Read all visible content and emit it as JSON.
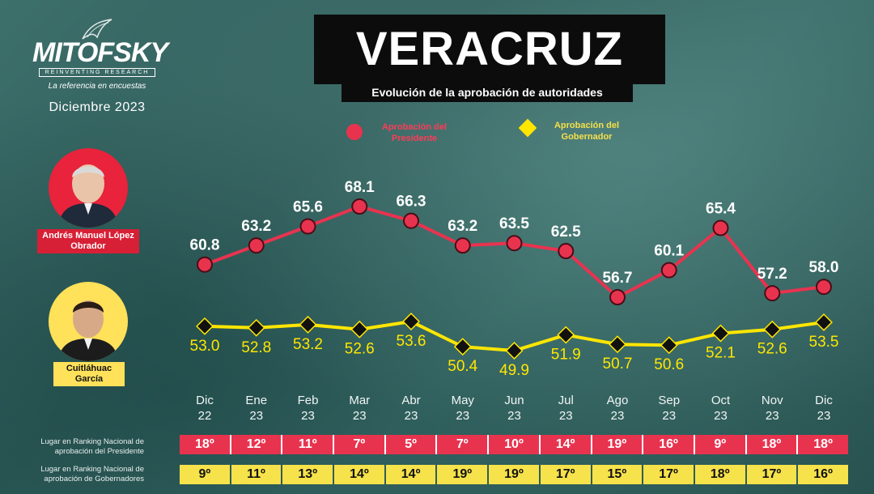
{
  "brand": {
    "name": "MITOFSKY",
    "tagline": "REINVENTING RESEARCH",
    "slogan": "La referencia en encuestas",
    "date": "Diciembre 2023"
  },
  "title": "VERACRUZ",
  "subtitle": "Evolución de la aprobación de autoridades",
  "legend": {
    "president": "Aprobación del Presidente",
    "governor": "Aprobación del Gobernador"
  },
  "people": {
    "president": "Andrés Manuel López Obrador",
    "governor": "Cuitláhuac García"
  },
  "colors": {
    "president": "#e8334f",
    "governor": "#ffe600",
    "marker": "#111111"
  },
  "chart_data": {
    "type": "line",
    "title": "VERACRUZ",
    "subtitle": "Evolución de la aprobación de autoridades",
    "categories": [
      {
        "month": "Dic",
        "year": "22"
      },
      {
        "month": "Ene",
        "year": "23"
      },
      {
        "month": "Feb",
        "year": "23"
      },
      {
        "month": "Mar",
        "year": "23"
      },
      {
        "month": "Abr",
        "year": "23"
      },
      {
        "month": "May",
        "year": "23"
      },
      {
        "month": "Jun",
        "year": "23"
      },
      {
        "month": "Jul",
        "year": "23"
      },
      {
        "month": "Ago",
        "year": "23"
      },
      {
        "month": "Sep",
        "year": "23"
      },
      {
        "month": "Oct",
        "year": "23"
      },
      {
        "month": "Nov",
        "year": "23"
      },
      {
        "month": "Dic",
        "year": "23"
      }
    ],
    "series": [
      {
        "name": "Aprobación del Presidente",
        "values": [
          60.8,
          63.2,
          65.6,
          68.1,
          66.3,
          63.2,
          63.5,
          62.5,
          56.7,
          60.1,
          65.4,
          57.2,
          58.0
        ]
      },
      {
        "name": "Aprobación del Gobernador",
        "values": [
          53.0,
          52.8,
          53.2,
          52.6,
          53.6,
          50.4,
          49.9,
          51.9,
          50.7,
          50.6,
          52.1,
          52.6,
          53.5
        ]
      }
    ],
    "legend_placement": "top"
  },
  "rankings": {
    "president_label": "Lugar en Ranking Nacional de aprobación del Presidente",
    "governor_label": "Lugar en Ranking Nacional de aprobación de Gobernadores",
    "president": [
      "18º",
      "12º",
      "11º",
      "7º",
      "5º",
      "7º",
      "10º",
      "14º",
      "19º",
      "16º",
      "9º",
      "18º",
      "18º"
    ],
    "governor": [
      "9º",
      "11º",
      "13º",
      "14º",
      "14º",
      "19º",
      "19º",
      "17º",
      "15º",
      "17º",
      "18º",
      "17º",
      "16º"
    ]
  }
}
